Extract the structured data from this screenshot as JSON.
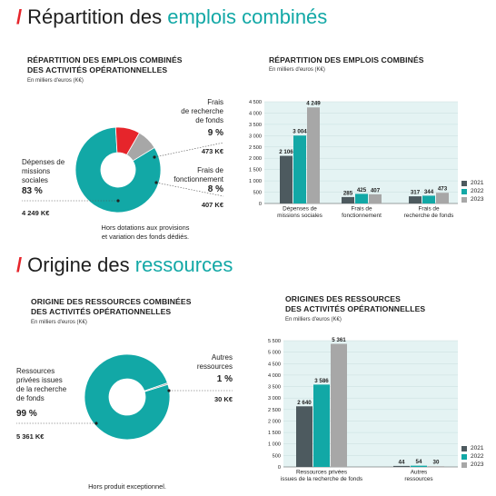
{
  "colors": {
    "accent": "#12a8a6",
    "red": "#e6252b",
    "grey": "#a7a7a7",
    "dark": "#4d5a5f",
    "panel": "#e4f3f3",
    "y2021": "#4d5a5f",
    "y2022": "#12a8a6",
    "y2023": "#a7a7a7"
  },
  "section1": {
    "slash": "/",
    "title_plain": "Répartition des ",
    "title_accent": "emplois combinés"
  },
  "section2": {
    "slash": "/",
    "title_plain": "Origine des ",
    "title_accent": "ressources"
  },
  "chart_data": [
    {
      "type": "pie",
      "title_line1": "RÉPARTITION DES EMPLOIS COMBINÉS",
      "title_line2": "DES ACTIVITÉS OPÉRATIONNELLES",
      "subtitle": "En milliers d'euros (K€)",
      "slices": [
        {
          "label_lines": [
            "Dépenses de missions",
            "sociales"
          ],
          "percent_text": "83 %",
          "amount_text": "4 249 K€",
          "value": 4249,
          "color": "#12a8a6"
        },
        {
          "label_lines": [
            "Frais",
            "de recherche",
            "de fonds"
          ],
          "percent_text": "9 %",
          "amount_text": "473 K€",
          "value": 473,
          "color": "#e6252b"
        },
        {
          "label_lines": [
            "Frais de",
            "fonctionnement"
          ],
          "percent_text": "8 %",
          "amount_text": "407 K€",
          "value": 407,
          "color": "#a7a7a7"
        }
      ],
      "note_lines": [
        "Hors dotations aux provisions",
        "et variation des fonds dédiés."
      ]
    },
    {
      "type": "bar",
      "title": "RÉPARTITION DES EMPLOIS COMBINÉS",
      "subtitle": "En milliers d'euros (K€)",
      "categories": [
        [
          "Dépenses de",
          "missions sociales"
        ],
        [
          "Frais de",
          "fonctionnement"
        ],
        [
          "Frais de",
          "recherche de fonds"
        ]
      ],
      "series": [
        {
          "name": "2021",
          "values": [
            2106,
            285,
            317
          ],
          "labels": [
            "2 106",
            "285",
            "317"
          ]
        },
        {
          "name": "2022",
          "values": [
            3004,
            425,
            344
          ],
          "labels": [
            "3 004",
            "425",
            "344"
          ]
        },
        {
          "name": "2023",
          "values": [
            4249,
            407,
            473
          ],
          "labels": [
            "4 249",
            "407",
            "473"
          ]
        }
      ],
      "ylim": [
        0,
        4500
      ],
      "yticks": [
        0,
        500,
        1000,
        1500,
        2000,
        2500,
        3000,
        3500,
        4000,
        4500
      ],
      "ytick_labels": [
        "0",
        "500",
        "1 000",
        "1 500",
        "2 000",
        "2 500",
        "3 000",
        "3 500",
        "4 000",
        "4 500"
      ],
      "grid": true,
      "legend": "right"
    },
    {
      "type": "pie",
      "title_line1": "ORIGINE DES RESSOURCES COMBINÉES",
      "title_line2": "DES ACTIVITÉS OPÉRATIONNELLES",
      "subtitle": "En milliers d'euros (K€)",
      "slices": [
        {
          "label_lines": [
            "Ressources",
            "privées issues",
            "de la recherche",
            "de fonds"
          ],
          "percent_text": "99 %",
          "amount_text": "5 361 K€",
          "value": 5361,
          "color": "#12a8a6"
        },
        {
          "label_lines": [
            "Autres",
            "ressources"
          ],
          "percent_text": "1 %",
          "amount_text": "30 K€",
          "value": 30,
          "color": "#a7a7a7"
        }
      ],
      "note_lines": [
        "Hors produit exceptionnel."
      ]
    },
    {
      "type": "bar",
      "title_line1": "ORIGINES DES RESSOURCES",
      "title_line2": "DES ACTIVITÉS OPÉRATIONNELLES",
      "subtitle": "En milliers d'euros (K€)",
      "categories": [
        [
          "Ressources privées",
          "issues de la recherche de fonds"
        ],
        [
          "Autres",
          "ressources"
        ]
      ],
      "series": [
        {
          "name": "2021",
          "values": [
            2640,
            44
          ],
          "labels": [
            "2 640",
            "44"
          ]
        },
        {
          "name": "2022",
          "values": [
            3586,
            54
          ],
          "labels": [
            "3 586",
            "54"
          ]
        },
        {
          "name": "2023",
          "values": [
            5361,
            30
          ],
          "labels": [
            "5 361",
            "30"
          ]
        }
      ],
      "ylim": [
        0,
        5500
      ],
      "yticks": [
        0,
        500,
        1000,
        1500,
        2000,
        2500,
        3000,
        3500,
        4000,
        4500,
        5000,
        5500
      ],
      "ytick_labels": [
        "0",
        "500",
        "1 000",
        "1 500",
        "2 000",
        "2 500",
        "3 000",
        "3 500",
        "4 000",
        "4 500",
        "5 000",
        "5 500"
      ],
      "grid": true,
      "legend": "right"
    }
  ]
}
